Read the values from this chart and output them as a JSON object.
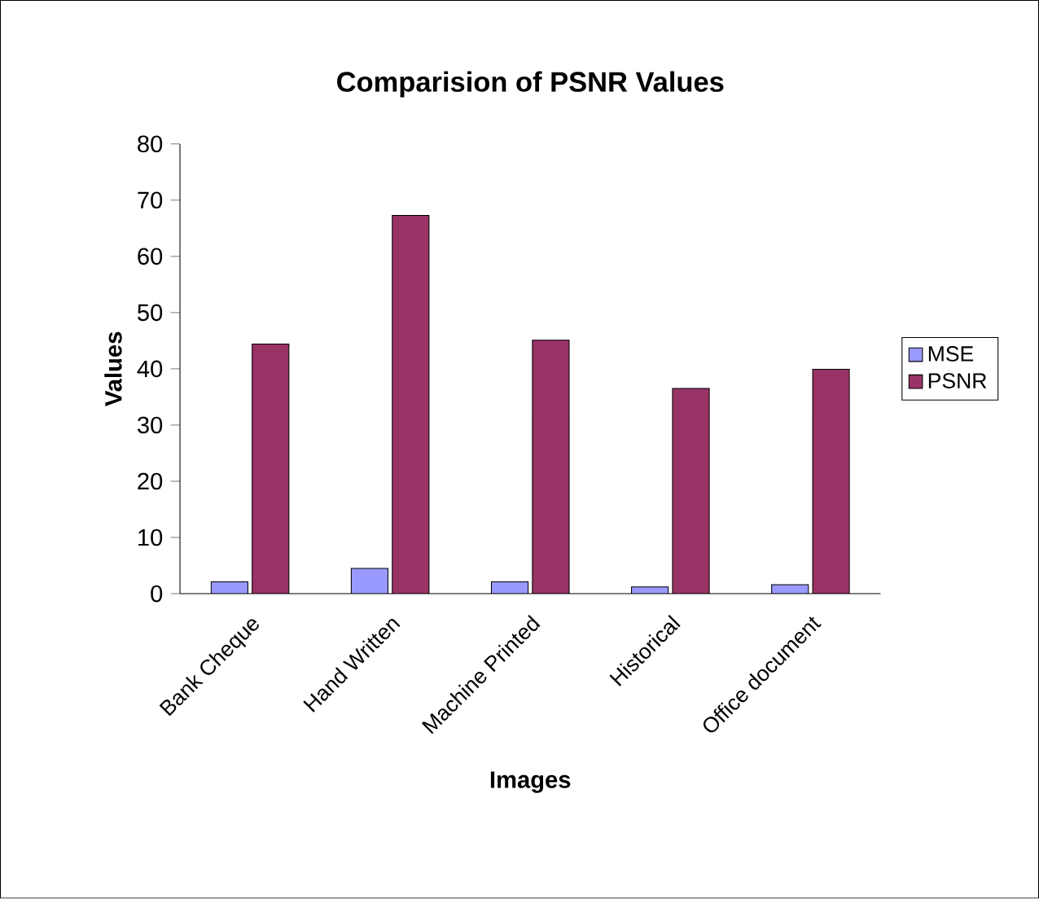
{
  "chart_data": {
    "type": "bar",
    "title": "Comparision of PSNR Values",
    "xlabel": "Images",
    "ylabel": "Values",
    "categories": [
      "Bank Cheque",
      "Hand Written",
      "Machine Printed",
      "Historical",
      "Office document"
    ],
    "series": [
      {
        "name": "MSE",
        "color": "#9999ff",
        "values": [
          2.1,
          4.5,
          2.1,
          1.2,
          1.6
        ]
      },
      {
        "name": "PSNR",
        "color": "#993366",
        "values": [
          44.4,
          67.3,
          45.1,
          36.5,
          39.9
        ]
      }
    ],
    "ylim": [
      0,
      80
    ],
    "yticks": [
      0,
      10,
      20,
      30,
      40,
      50,
      60,
      70,
      80
    ],
    "legend": "right",
    "grid": false
  }
}
